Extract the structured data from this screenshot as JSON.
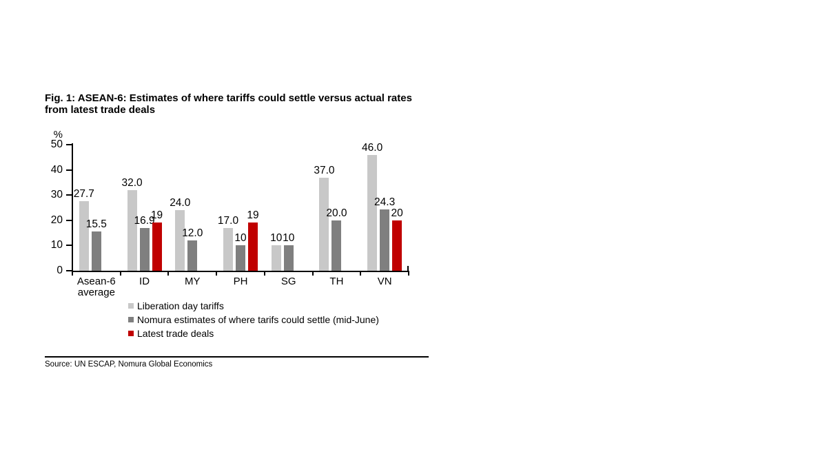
{
  "figure": {
    "title": "Fig. 1: ASEAN-6: Estimates of where tariffs could settle versus actual rates\nfrom latest trade deals",
    "source": "Source: UN ESCAP, Nomura Global Economics"
  },
  "chart_data": {
    "type": "bar",
    "title": "Fig. 1: ASEAN-6: Estimates of where tariffs could settle versus actual rates from latest trade deals",
    "unit": "%",
    "xlabel": "",
    "ylabel": "%",
    "ylim": [
      0,
      50
    ],
    "yticks": [
      0,
      10,
      20,
      30,
      40,
      50
    ],
    "grid": false,
    "legend_position": "bottom-left",
    "categories": [
      "Asean-6\naverage",
      "ID",
      "MY",
      "PH",
      "SG",
      "TH",
      "VN"
    ],
    "series": [
      {
        "name": "Liberation day tariffs",
        "color": "#c8c8c8",
        "values": [
          27.7,
          32.0,
          24.0,
          17.0,
          10,
          37.0,
          46.0
        ],
        "labels": [
          "27.7",
          "32.0",
          "24.0",
          "17.0",
          "10",
          "37.0",
          "46.0"
        ]
      },
      {
        "name": "Nomura estimates of where tarifs could settle (mid-June)",
        "color": "#7f7f7f",
        "values": [
          15.5,
          16.9,
          12.0,
          10,
          10,
          20.0,
          24.3
        ],
        "labels": [
          "15.5",
          "16.9",
          "12.0",
          "10",
          "10",
          "20.0",
          "24.3"
        ]
      },
      {
        "name": "Latest trade deals",
        "color": "#c00000",
        "values": [
          null,
          19,
          null,
          19,
          null,
          null,
          20
        ],
        "labels": [
          null,
          "19",
          null,
          "19",
          null,
          null,
          "20"
        ]
      }
    ]
  }
}
